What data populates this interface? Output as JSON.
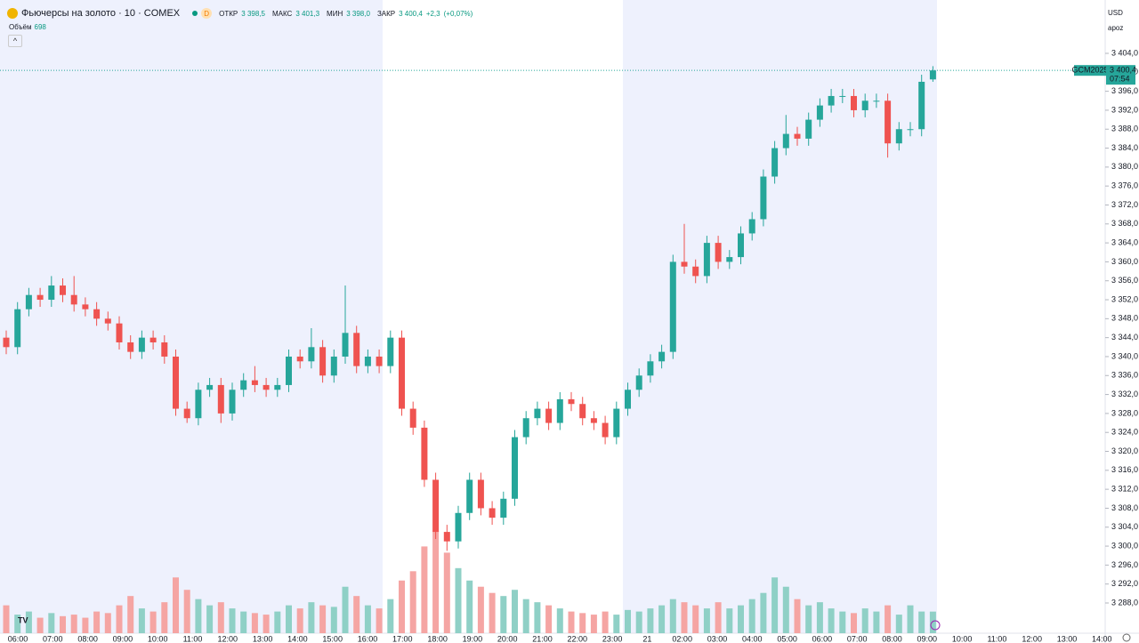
{
  "header": {
    "title": "Фьючерсы на золото · 10 · COMEX",
    "badge": "D",
    "open_label": "ОТКР",
    "open": "3 398,5",
    "high_label": "МАКС",
    "high": "3 401,3",
    "low_label": "МИН",
    "low": "3 398,0",
    "close_label": "ЗАКР",
    "close": "3 400,4",
    "change": "+2,3",
    "change_pct": "(+0,07%)",
    "volume_label": "Объём",
    "volume": "698",
    "currency": "USD",
    "scale_mode": "apoz"
  },
  "chart_data": {
    "type": "candlestick",
    "grid": false,
    "up_color": "#26a69a",
    "down_color": "#ef5350",
    "volume_up_color": "#8fd0c6",
    "volume_down_color": "#f5a5a3",
    "open": [
      3344,
      3342,
      3350,
      3353,
      3352,
      3355,
      3353,
      3351,
      3350,
      3348,
      3347,
      3343,
      3341,
      3344,
      3343,
      3340,
      3329,
      3327,
      3333,
      3334,
      3328,
      3333,
      3335,
      3334,
      3333,
      3334,
      3340,
      3339,
      3342,
      3336,
      3340,
      3345,
      3338,
      3340,
      3338,
      3344,
      3329,
      3325,
      3314,
      3303,
      3301,
      3307,
      3314,
      3308,
      3306,
      3310,
      3323,
      3327,
      3329,
      3326,
      3331,
      3330,
      3327,
      3326,
      3323,
      3329,
      3333,
      3336,
      3339,
      3341,
      3360,
      3359,
      3357,
      3364,
      3360,
      3361,
      3366,
      3369,
      3378,
      3384,
      3387,
      3386,
      3390,
      3393,
      3395,
      3395,
      3392,
      3394,
      3394,
      3385,
      3388,
      3388,
      3398.5
    ],
    "high": [
      3345.5,
      3351.5,
      3354.5,
      3354.5,
      3357,
      3356.5,
      3357,
      3352.5,
      3351.5,
      3349.5,
      3348.5,
      3344.5,
      3345.5,
      3345.5,
      3344.5,
      3341.5,
      3330.5,
      3334.5,
      3335.5,
      3335.5,
      3334.5,
      3336.5,
      3338,
      3335.5,
      3335.5,
      3341.5,
      3341.5,
      3346,
      3343.5,
      3341.5,
      3355,
      3346.5,
      3341.5,
      3341.5,
      3345.5,
      3345.5,
      3330.5,
      3326.5,
      3315.5,
      3304.5,
      3308.5,
      3315.5,
      3315.5,
      3309.5,
      3311.5,
      3324.5,
      3328.5,
      3330.5,
      3330.5,
      3332.5,
      3332.5,
      3331.5,
      3328.5,
      3327.5,
      3330.5,
      3334.5,
      3337.5,
      3340.5,
      3342.5,
      3361.5,
      3368,
      3360.5,
      3365.5,
      3365.5,
      3362.5,
      3367.5,
      3370.5,
      3379.5,
      3385.5,
      3391,
      3388.5,
      3391.5,
      3394.5,
      3396.5,
      3396.5,
      3396.5,
      3395.5,
      3395.5,
      3395.5,
      3389.5,
      3389.5,
      3399.5,
      3401.3
    ],
    "low": [
      3340.5,
      3340.5,
      3348.5,
      3350.5,
      3350.5,
      3351.5,
      3349.5,
      3348.5,
      3346.5,
      3345.5,
      3341.5,
      3339.5,
      3339.5,
      3341.5,
      3338.5,
      3327.5,
      3326,
      3325.5,
      3331.5,
      3326,
      3326.5,
      3331.5,
      3332.5,
      3331.5,
      3331.5,
      3332.5,
      3337.5,
      3337.5,
      3334.5,
      3334.5,
      3338.5,
      3336.5,
      3336.5,
      3336.5,
      3336.5,
      3327.5,
      3323.5,
      3312.5,
      3301.5,
      3299,
      3299.5,
      3305.5,
      3306.5,
      3304.5,
      3304.5,
      3308.5,
      3321.5,
      3325.5,
      3324.5,
      3324.5,
      3328.5,
      3325.5,
      3324.5,
      3321.5,
      3321.5,
      3327.5,
      3331.5,
      3334.5,
      3337.5,
      3339.5,
      3357.5,
      3355.5,
      3355.5,
      3358.5,
      3358.5,
      3359.5,
      3364.5,
      3367.5,
      3376.5,
      3382.5,
      3384.5,
      3384.5,
      3388.5,
      3391.5,
      3393.5,
      3390.5,
      3390.5,
      3392.5,
      3382,
      3383.5,
      3386.5,
      3386.5,
      3398.0
    ],
    "close": [
      3342,
      3350,
      3353,
      3352,
      3355,
      3353,
      3351,
      3350,
      3348,
      3347,
      3343,
      3341,
      3344,
      3343,
      3340,
      3329,
      3327,
      3333,
      3334,
      3328,
      3333,
      3335,
      3334,
      3333,
      3334,
      3340,
      3339,
      3342,
      3336,
      3340,
      3345,
      3338,
      3340,
      3338,
      3344,
      3329,
      3325,
      3314,
      3303,
      3301,
      3307,
      3314,
      3308,
      3306,
      3310,
      3323,
      3327,
      3329,
      3326,
      3331,
      3330,
      3327,
      3326,
      3323,
      3329,
      3333,
      3336,
      3339,
      3341,
      3360,
      3359,
      3357,
      3364,
      3360,
      3361,
      3366,
      3369,
      3378,
      3384,
      3387,
      3386,
      3390,
      3393,
      3395,
      3395,
      3392,
      3394,
      3394,
      3385,
      3388,
      3388,
      3398,
      3400.4
    ],
    "volume": [
      900,
      600,
      700,
      500,
      650,
      550,
      600,
      500,
      700,
      650,
      900,
      1200,
      800,
      700,
      1000,
      1800,
      1400,
      1100,
      900,
      1000,
      800,
      700,
      650,
      600,
      700,
      900,
      800,
      1000,
      900,
      850,
      1500,
      1200,
      900,
      800,
      1100,
      1700,
      2000,
      2800,
      3300,
      2600,
      2100,
      1700,
      1500,
      1300,
      1200,
      1400,
      1100,
      1000,
      900,
      800,
      700,
      650,
      600,
      700,
      600,
      750,
      700,
      800,
      900,
      1100,
      1000,
      900,
      800,
      1000,
      800,
      900,
      1100,
      1300,
      1800,
      1500,
      1100,
      900,
      1000,
      800,
      700,
      650,
      800,
      700,
      900,
      600,
      900,
      700,
      698
    ],
    "x_tick_labels": [
      "06:00",
      "07:00",
      "08:00",
      "09:00",
      "10:00",
      "11:00",
      "12:00",
      "13:00",
      "14:00",
      "15:00",
      "16:00",
      "17:00",
      "18:00",
      "19:00",
      "20:00",
      "21:00",
      "22:00",
      "23:00",
      "21",
      "02:00",
      "03:00",
      "04:00",
      "05:00",
      "06:00",
      "07:00",
      "08:00",
      "09:00",
      "10:00",
      "11:00",
      "12:00",
      "13:00",
      "14:00"
    ],
    "ylim": [
      3288,
      3404
    ],
    "yticks": [
      {
        "value": 3288,
        "label": "3 288,0"
      },
      {
        "value": 3292,
        "label": "3 292,0"
      },
      {
        "value": 3296,
        "label": "3 296,0"
      },
      {
        "value": 3300,
        "label": "3 300,0"
      },
      {
        "value": 3304,
        "label": "3 304,0"
      },
      {
        "value": 3308,
        "label": "3 308,0"
      },
      {
        "value": 3312,
        "label": "3 312,0"
      },
      {
        "value": 3316,
        "label": "3 316,0"
      },
      {
        "value": 3320,
        "label": "3 320,0"
      },
      {
        "value": 3324,
        "label": "3 324,0"
      },
      {
        "value": 3328,
        "label": "3 328,0"
      },
      {
        "value": 3332,
        "label": "3 332,0"
      },
      {
        "value": 3336,
        "label": "3 336,0"
      },
      {
        "value": 3340,
        "label": "3 340,0"
      },
      {
        "value": 3344,
        "label": "3 344,0"
      },
      {
        "value": 3348,
        "label": "3 348,0"
      },
      {
        "value": 3352,
        "label": "3 352,0"
      },
      {
        "value": 3356,
        "label": "3 356,0"
      },
      {
        "value": 3360,
        "label": "3 360,0"
      },
      {
        "value": 3364,
        "label": "3 364,0"
      },
      {
        "value": 3368,
        "label": "3 368,0"
      },
      {
        "value": 3372,
        "label": "3 372,0"
      },
      {
        "value": 3376,
        "label": "3 376,0"
      },
      {
        "value": 3380,
        "label": "3 380,0"
      },
      {
        "value": 3384,
        "label": "3 384,0"
      },
      {
        "value": 3388,
        "label": "3 388,0"
      },
      {
        "value": 3392,
        "label": "3 392,0"
      },
      {
        "value": 3396,
        "label": "3 396,0"
      },
      {
        "value": 3400,
        "label": "3 400,0"
      },
      {
        "value": 3404,
        "label": "3 404,0"
      }
    ],
    "last_price": {
      "symbol": "GCM2025",
      "value": 3400.4,
      "label": "3 400,4",
      "countdown": "07:54"
    }
  }
}
